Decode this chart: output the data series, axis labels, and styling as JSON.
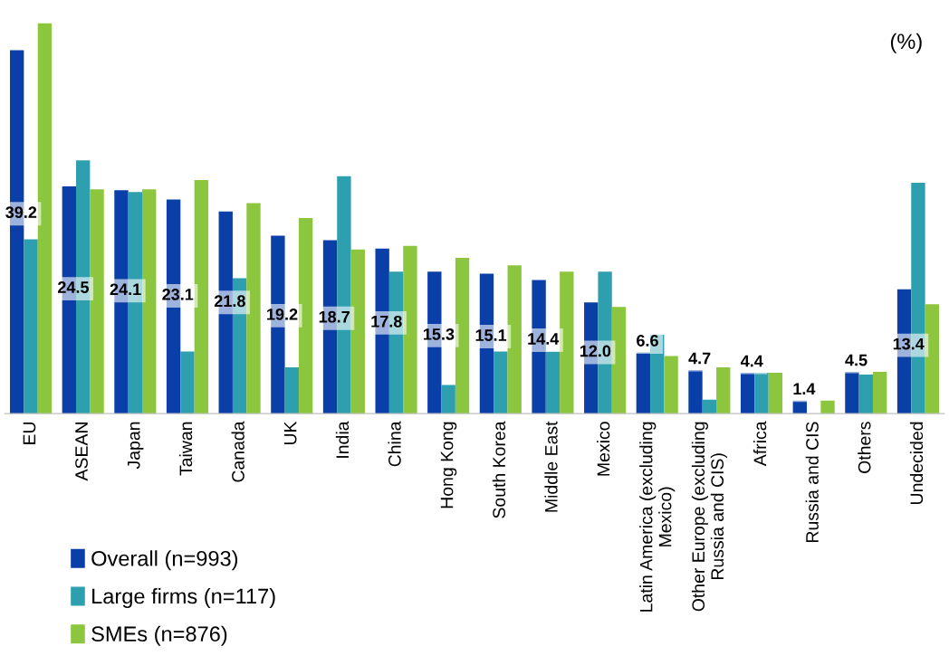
{
  "chart_data": {
    "type": "bar",
    "ylabel": "(%)",
    "legend": "bottom left",
    "grid": false,
    "categories": [
      "EU",
      "ASEAN",
      "Japan",
      "Taiwan",
      "Canada",
      "UK",
      "India",
      "China",
      "Hong Kong",
      "South Korea",
      "Middle East",
      "Mexico",
      "Latin America (excluding Mexico)",
      "Other Europe (excluding Russia and CIS)",
      "Africa",
      "Russia and CIS",
      "Others",
      "Undecided"
    ],
    "series": [
      {
        "name": "Overall (n=993)",
        "color": "#0a3fa8",
        "values": [
          39.2,
          24.5,
          24.1,
          23.1,
          21.8,
          19.2,
          18.7,
          17.8,
          15.3,
          15.1,
          14.4,
          12.0,
          6.6,
          4.7,
          4.4,
          1.4,
          4.5,
          13.4
        ],
        "value_labels": [
          "39.2",
          "24.5",
          "24.1",
          "23.1",
          "21.8",
          "19.2",
          "18.7",
          "17.8",
          "15.3",
          "15.1",
          "14.4",
          "12.0",
          "6.6",
          "4.7",
          "4.4",
          "1.4",
          "4.5",
          "13.4"
        ]
      },
      {
        "name": "Large firms (n=117)",
        "color": "#2e9fae",
        "values": [
          18.8,
          27.3,
          23.9,
          6.7,
          14.6,
          5.0,
          25.6,
          15.3,
          3.1,
          6.7,
          6.7,
          15.3,
          8.5,
          1.5,
          4.4,
          0,
          4.2,
          24.9
        ]
      },
      {
        "name": "SMEs (n=876)",
        "color": "#8cc63f",
        "values": [
          42.1,
          24.2,
          24.2,
          25.2,
          22.7,
          21.1,
          17.7,
          18.1,
          16.8,
          16.0,
          15.3,
          11.5,
          6.2,
          5.0,
          4.4,
          1.4,
          4.5,
          11.8
        ]
      }
    ]
  }
}
